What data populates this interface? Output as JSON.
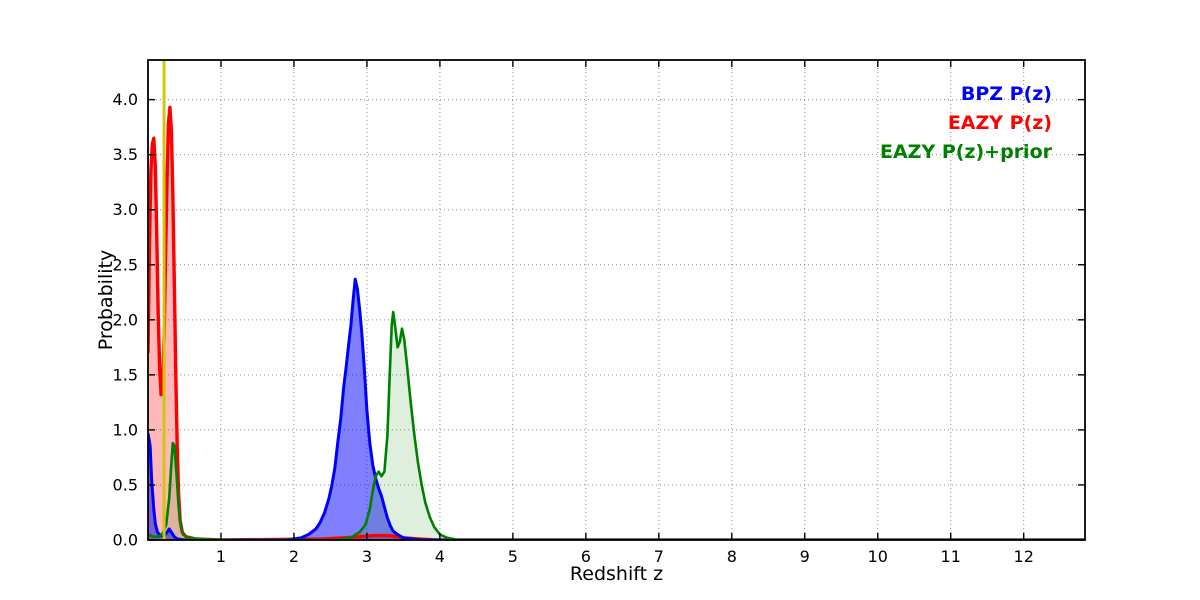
{
  "figure": {
    "background": "#ffffff",
    "frame_color": "#000000",
    "grid_color": "#666666"
  },
  "chart_data": {
    "type": "line",
    "title": "",
    "xlabel": "Redshift z",
    "ylabel": "Probability",
    "xlim": [
      0,
      12.84
    ],
    "ylim": [
      0,
      4.36
    ],
    "grid": true,
    "xticks": [
      {
        "v": 1,
        "label": "1"
      },
      {
        "v": 2,
        "label": "2"
      },
      {
        "v": 3,
        "label": "3"
      },
      {
        "v": 4,
        "label": "4"
      },
      {
        "v": 5,
        "label": "5"
      },
      {
        "v": 6,
        "label": "6"
      },
      {
        "v": 7,
        "label": "7"
      },
      {
        "v": 8,
        "label": "8"
      },
      {
        "v": 9,
        "label": "9"
      },
      {
        "v": 10,
        "label": "10"
      },
      {
        "v": 11,
        "label": "11"
      },
      {
        "v": 12,
        "label": "12"
      }
    ],
    "yticks": [
      {
        "v": 0.0,
        "label": "0.0"
      },
      {
        "v": 0.5,
        "label": "0.5"
      },
      {
        "v": 1.0,
        "label": "1.0"
      },
      {
        "v": 1.5,
        "label": "1.5"
      },
      {
        "v": 2.0,
        "label": "2.0"
      },
      {
        "v": 2.5,
        "label": "2.5"
      },
      {
        "v": 3.0,
        "label": "3.0"
      },
      {
        "v": 3.5,
        "label": "3.5"
      },
      {
        "v": 4.0,
        "label": "4.0"
      }
    ],
    "legend": {
      "position": "top-right",
      "entries": [
        {
          "label": "BPZ P(z)",
          "color": "#0000ff"
        },
        {
          "label": "EAZY P(z)",
          "color": "#ff0000"
        },
        {
          "label": "EAZY P(z)+prior",
          "color": "#008000"
        }
      ]
    },
    "vlines": [
      {
        "name": "spec-z-marker",
        "x": 0.22,
        "color": "#d4c40e",
        "width": 3
      }
    ],
    "series": [
      {
        "name": "EAZY P(z)",
        "color": "#ff0000",
        "fill": "#ff0000",
        "fill_opacity": 0.28,
        "line_width": 3.4,
        "points": [
          [
            0,
            1.7
          ],
          [
            0.02,
            2.7
          ],
          [
            0.04,
            3.35
          ],
          [
            0.06,
            3.6
          ],
          [
            0.08,
            3.65
          ],
          [
            0.1,
            3.4
          ],
          [
            0.12,
            2.75
          ],
          [
            0.14,
            2.05
          ],
          [
            0.16,
            1.55
          ],
          [
            0.18,
            1.32
          ],
          [
            0.2,
            1.4
          ],
          [
            0.22,
            1.85
          ],
          [
            0.24,
            2.55
          ],
          [
            0.26,
            3.25
          ],
          [
            0.28,
            3.78
          ],
          [
            0.3,
            3.93
          ],
          [
            0.32,
            3.72
          ],
          [
            0.34,
            3.15
          ],
          [
            0.36,
            2.35
          ],
          [
            0.38,
            1.55
          ],
          [
            0.4,
            0.85
          ],
          [
            0.42,
            0.42
          ],
          [
            0.44,
            0.18
          ],
          [
            0.47,
            0.07
          ],
          [
            0.52,
            0.03
          ],
          [
            0.65,
            0.01
          ],
          [
            1.0,
            0
          ],
          [
            2.4,
            0.01
          ],
          [
            2.7,
            0.02
          ],
          [
            2.9,
            0.03
          ],
          [
            3.1,
            0.04
          ],
          [
            3.3,
            0.04
          ],
          [
            3.5,
            0.02
          ],
          [
            3.7,
            0.01
          ],
          [
            3.95,
            0
          ],
          [
            12.84,
            0
          ]
        ]
      },
      {
        "name": "BPZ P(z)",
        "color": "#0000ff",
        "fill": "#0000ff",
        "fill_opacity": 0.5,
        "line_width": 3,
        "points": [
          [
            0,
            0.97
          ],
          [
            0.03,
            0.85
          ],
          [
            0.05,
            0.55
          ],
          [
            0.08,
            0.28
          ],
          [
            0.1,
            0.15
          ],
          [
            0.13,
            0.07
          ],
          [
            0.17,
            0.04
          ],
          [
            0.22,
            0.04
          ],
          [
            0.26,
            0.07
          ],
          [
            0.29,
            0.1
          ],
          [
            0.32,
            0.07
          ],
          [
            0.36,
            0.03
          ],
          [
            0.4,
            0.01
          ],
          [
            0.5,
            0
          ],
          [
            1.9,
            0
          ],
          [
            2.0,
            0.01
          ],
          [
            2.1,
            0.02
          ],
          [
            2.2,
            0.05
          ],
          [
            2.3,
            0.1
          ],
          [
            2.36,
            0.16
          ],
          [
            2.42,
            0.25
          ],
          [
            2.48,
            0.38
          ],
          [
            2.52,
            0.5
          ],
          [
            2.56,
            0.65
          ],
          [
            2.6,
            0.88
          ],
          [
            2.64,
            1.1
          ],
          [
            2.68,
            1.38
          ],
          [
            2.72,
            1.6
          ],
          [
            2.75,
            1.78
          ],
          [
            2.78,
            1.95
          ],
          [
            2.81,
            2.18
          ],
          [
            2.84,
            2.37
          ],
          [
            2.87,
            2.28
          ],
          [
            2.9,
            2.1
          ],
          [
            2.93,
            1.88
          ],
          [
            2.96,
            1.6
          ],
          [
            3.0,
            1.18
          ],
          [
            3.04,
            0.88
          ],
          [
            3.08,
            0.68
          ],
          [
            3.12,
            0.56
          ],
          [
            3.16,
            0.47
          ],
          [
            3.2,
            0.4
          ],
          [
            3.24,
            0.3
          ],
          [
            3.28,
            0.2
          ],
          [
            3.32,
            0.13
          ],
          [
            3.36,
            0.08
          ],
          [
            3.42,
            0.05
          ],
          [
            3.5,
            0.02
          ],
          [
            3.6,
            0.01
          ],
          [
            3.75,
            0
          ],
          [
            12.84,
            0
          ]
        ]
      },
      {
        "name": "EAZY P(z)+prior",
        "color": "#008000",
        "fill": "#008000",
        "fill_opacity": 0.13,
        "line_width": 2.6,
        "points": [
          [
            0,
            0.05
          ],
          [
            0.08,
            0.03
          ],
          [
            0.15,
            0.03
          ],
          [
            0.2,
            0.06
          ],
          [
            0.25,
            0.14
          ],
          [
            0.29,
            0.38
          ],
          [
            0.32,
            0.7
          ],
          [
            0.34,
            0.88
          ],
          [
            0.36,
            0.86
          ],
          [
            0.39,
            0.6
          ],
          [
            0.42,
            0.3
          ],
          [
            0.45,
            0.13
          ],
          [
            0.48,
            0.05
          ],
          [
            0.55,
            0.02
          ],
          [
            0.7,
            0.01
          ],
          [
            1.0,
            0
          ],
          [
            2.55,
            0
          ],
          [
            2.7,
            0.01
          ],
          [
            2.8,
            0.03
          ],
          [
            2.9,
            0.07
          ],
          [
            2.98,
            0.14
          ],
          [
            3.04,
            0.28
          ],
          [
            3.08,
            0.45
          ],
          [
            3.12,
            0.58
          ],
          [
            3.16,
            0.62
          ],
          [
            3.2,
            0.58
          ],
          [
            3.24,
            0.62
          ],
          [
            3.28,
            0.95
          ],
          [
            3.31,
            1.45
          ],
          [
            3.34,
            1.95
          ],
          [
            3.36,
            2.07
          ],
          [
            3.39,
            1.92
          ],
          [
            3.42,
            1.75
          ],
          [
            3.45,
            1.8
          ],
          [
            3.48,
            1.92
          ],
          [
            3.51,
            1.83
          ],
          [
            3.55,
            1.58
          ],
          [
            3.6,
            1.25
          ],
          [
            3.65,
            0.95
          ],
          [
            3.7,
            0.7
          ],
          [
            3.75,
            0.5
          ],
          [
            3.8,
            0.34
          ],
          [
            3.86,
            0.21
          ],
          [
            3.92,
            0.12
          ],
          [
            4.0,
            0.05
          ],
          [
            4.1,
            0.02
          ],
          [
            4.25,
            0
          ],
          [
            12.84,
            0
          ]
        ]
      }
    ]
  }
}
